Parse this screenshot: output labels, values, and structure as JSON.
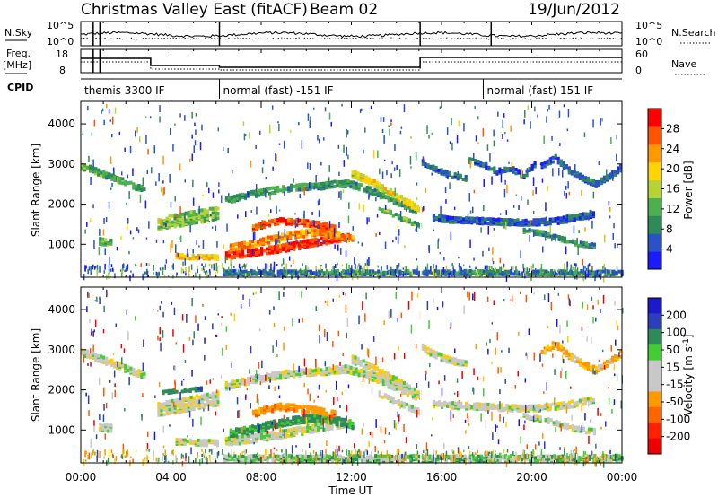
{
  "header": {
    "title": "Christmas Valley East (fitACF)",
    "beam": "Beam 02",
    "date": "19/Jun/2012"
  },
  "strips": {
    "nsky_label": "N.Sky",
    "nsky_tick_top": "10^5",
    "nsky_tick_bottom": "10^0",
    "nsearch_label": "N.Search",
    "nsearch_tick_top": "10^5",
    "nsearch_tick_bottom": "10^0",
    "freq_label": "Freq.",
    "freq_unit": "[MHz]",
    "freq_tick_top": "18",
    "freq_tick_bottom": "8",
    "nave_label": "Nave",
    "nave_tick_top": "60",
    "nave_tick_bottom": "0",
    "cpid_label": "CPID",
    "cpid_segments": [
      {
        "label": "themis 3300 IF",
        "start_h": 0,
        "end_h": 6.15
      },
      {
        "label": "normal (fast) -151 IF",
        "start_h": 6.15,
        "end_h": 17.85
      },
      {
        "label": "normal (fast) 151 IF",
        "start_h": 17.85,
        "end_h": 24
      }
    ]
  },
  "colors": {
    "power": [
      "#1a1aff",
      "#2a52c8",
      "#2e8b57",
      "#4caf50",
      "#b5d334",
      "#ffd400",
      "#ff9900",
      "#ff5500",
      "#ff0000"
    ],
    "velocity": [
      "#1a1acc",
      "#2b3fb8",
      "#2e8b57",
      "#44cc33",
      "#c8c8c8",
      "#c8c8c8",
      "#ff9900",
      "#ff6600",
      "#ff2200",
      "#ee0000"
    ],
    "ground_scatter": "#c8c8c8"
  },
  "chart_data": [
    {
      "type": "heatmap",
      "name": "power",
      "xlabel": "",
      "ylabel": "Slant Range [km]",
      "ylim": [
        180,
        4560
      ],
      "yticks": [
        1000,
        2000,
        3000,
        4000
      ],
      "colorbar_label": "Power [dB]",
      "colorbar_ticks": [
        "4",
        "8",
        "12",
        "16",
        "20",
        "24",
        "28"
      ],
      "colorbar_range": [
        0,
        32
      ],
      "bands": [
        {
          "t": [
            0,
            0.4,
            0.8,
            1.2,
            1.6,
            2.0,
            2.4,
            2.8
          ],
          "r": [
            2930,
            2880,
            2780,
            2700,
            2620,
            2530,
            2430,
            2380
          ],
          "w": 140,
          "v": 11
        },
        {
          "t": [
            3.4,
            3.8,
            4.2,
            4.6,
            5.0,
            5.4,
            5.8,
            6.1
          ],
          "r": [
            1520,
            1560,
            1600,
            1640,
            1690,
            1720,
            1760,
            1800
          ],
          "w": 320,
          "v": 14
        },
        {
          "t": [
            4.2,
            4.7,
            5.2,
            5.7,
            6.1
          ],
          "r": [
            720,
            700,
            690,
            680,
            680
          ],
          "w": 120,
          "v": 20
        },
        {
          "t": [
            0.8,
            1.1,
            1.4
          ],
          "r": [
            1080,
            1060,
            1040
          ],
          "w": 160,
          "v": 12
        },
        {
          "t": [
            6.4,
            7.0,
            7.6,
            8.2,
            8.8,
            9.4,
            10.0,
            10.6,
            11.2,
            11.8
          ],
          "r": [
            720,
            760,
            800,
            850,
            900,
            960,
            1020,
            1080,
            1140,
            1180
          ],
          "w": 180,
          "v": 29
        },
        {
          "t": [
            6.6,
            7.2,
            7.8,
            8.4,
            9.0,
            9.6,
            10.2,
            10.8,
            11.4,
            12.0
          ],
          "r": [
            930,
            980,
            1050,
            1130,
            1200,
            1260,
            1290,
            1280,
            1220,
            1130
          ],
          "w": 170,
          "v": 24
        },
        {
          "t": [
            7.6,
            8.2,
            8.8,
            9.4,
            10.0,
            10.6,
            11.2
          ],
          "r": [
            1400,
            1520,
            1580,
            1560,
            1530,
            1480,
            1400
          ],
          "w": 150,
          "v": 27
        },
        {
          "t": [
            6.4,
            7.0,
            7.6,
            8.2,
            8.8,
            9.4,
            10.0,
            10.6,
            11.2,
            11.8,
            12.4,
            13.0,
            13.6,
            14.2,
            14.8
          ],
          "r": [
            2100,
            2180,
            2260,
            2320,
            2380,
            2420,
            2440,
            2460,
            2500,
            2520,
            2420,
            2300,
            2160,
            2000,
            1860
          ],
          "w": 160,
          "v": 10
        },
        {
          "t": [
            12.0,
            12.6,
            13.2,
            13.8,
            14.4,
            15.0
          ],
          "r": [
            2760,
            2620,
            2450,
            2260,
            2060,
            1880
          ],
          "w": 170,
          "v": 18
        },
        {
          "t": [
            13.2,
            13.8,
            14.4,
            15.0
          ],
          "r": [
            1900,
            1750,
            1600,
            1450
          ],
          "w": 110,
          "v": 12
        },
        {
          "t": [
            15.1,
            15.6,
            16.1,
            16.6,
            17.1
          ],
          "r": [
            3050,
            2900,
            2780,
            2700,
            2640
          ],
          "w": 130,
          "v": 6
        },
        {
          "t": [
            17.2,
            17.8,
            18.4,
            19.0,
            19.6,
            20.2
          ],
          "r": [
            3100,
            3000,
            2820,
            2900,
            2720,
            3050
          ],
          "w": 130,
          "v": 5
        },
        {
          "t": [
            20.4,
            21.0,
            21.6,
            22.2,
            22.8,
            23.4,
            23.9
          ],
          "r": [
            2950,
            3150,
            2850,
            2650,
            2500,
            2700,
            2900
          ],
          "w": 140,
          "v": 7
        },
        {
          "t": [
            15.6,
            16.4,
            17.2,
            18.0,
            18.8,
            19.6,
            20.4,
            21.2,
            22.0,
            22.8
          ],
          "r": [
            1660,
            1620,
            1600,
            1580,
            1560,
            1540,
            1560,
            1600,
            1680,
            1780
          ],
          "w": 150,
          "v": 6
        },
        {
          "t": [
            19.6,
            20.4,
            21.2,
            22.0,
            22.8
          ],
          "r": [
            1350,
            1280,
            1150,
            1020,
            960
          ],
          "w": 110,
          "v": 9
        },
        {
          "t": [
            6.3,
            9.0,
            12.0,
            15.0,
            18.0,
            21.0,
            24.0
          ],
          "r": [
            300,
            300,
            300,
            300,
            300,
            300,
            300
          ],
          "w": 120,
          "v": 8
        }
      ]
    },
    {
      "type": "heatmap",
      "name": "velocity",
      "xlabel": "Time UT",
      "ylabel": "Slant Range [km]",
      "ylim": [
        180,
        4560
      ],
      "yticks": [
        1000,
        2000,
        3000,
        4000
      ],
      "xticks": [
        "00:00",
        "04:00",
        "08:00",
        "12:00",
        "16:00",
        "20:00",
        "00:00"
      ],
      "colorbar_label": "Velocity [m s^-1]",
      "colorbar_ticks": [
        "200",
        "100",
        "50",
        "15",
        "-15",
        "-50",
        "-100",
        "-200"
      ],
      "bands": [
        {
          "t": [
            0,
            0.4,
            0.8,
            1.2,
            1.6,
            2.0,
            2.4,
            2.8
          ],
          "r": [
            2930,
            2880,
            2780,
            2700,
            2620,
            2530,
            2430,
            2380
          ],
          "w": 170,
          "v": 0
        },
        {
          "t": [
            3.4,
            3.8,
            4.2,
            4.6,
            5.0,
            5.4,
            5.8,
            6.1
          ],
          "r": [
            1520,
            1560,
            1600,
            1640,
            1690,
            1720,
            1760,
            1800
          ],
          "w": 340,
          "v": 0
        },
        {
          "t": [
            3.6,
            4.2,
            4.8,
            5.4
          ],
          "r": [
            1950,
            1980,
            2010,
            2040
          ],
          "w": 90,
          "v": 60
        },
        {
          "t": [
            4.2,
            4.7,
            5.2,
            5.7,
            6.1
          ],
          "r": [
            720,
            700,
            690,
            680,
            680
          ],
          "w": 140,
          "v": 0
        },
        {
          "t": [
            0.8,
            1.1,
            1.4
          ],
          "r": [
            1080,
            1060,
            1040
          ],
          "w": 180,
          "v": 0
        },
        {
          "t": [
            6.4,
            7.0,
            7.6,
            8.2,
            8.8,
            9.4,
            10.0,
            10.6,
            11.2,
            11.8
          ],
          "r": [
            720,
            760,
            800,
            850,
            900,
            960,
            1020,
            1080,
            1140,
            1180
          ],
          "w": 200,
          "v": 0
        },
        {
          "t": [
            6.6,
            7.2,
            7.8,
            8.4,
            9.0,
            9.6,
            10.2,
            10.8,
            11.4,
            12.0
          ],
          "r": [
            930,
            980,
            1050,
            1130,
            1200,
            1260,
            1290,
            1280,
            1220,
            1130
          ],
          "w": 190,
          "v": 40
        },
        {
          "t": [
            7.6,
            8.2,
            8.8,
            9.4,
            10.0,
            10.6,
            11.2
          ],
          "r": [
            1400,
            1520,
            1580,
            1560,
            1530,
            1480,
            1400
          ],
          "w": 170,
          "v": -60
        },
        {
          "t": [
            6.4,
            7.0,
            7.6,
            8.2,
            8.8,
            9.4,
            10.0,
            10.6,
            11.2,
            11.8,
            12.4,
            13.0,
            13.6,
            14.2,
            14.8
          ],
          "r": [
            2100,
            2180,
            2260,
            2320,
            2380,
            2420,
            2440,
            2460,
            2500,
            2520,
            2420,
            2300,
            2160,
            2000,
            1860
          ],
          "w": 180,
          "v": 0
        },
        {
          "t": [
            12.0,
            12.6,
            13.2,
            13.8,
            14.4,
            15.0
          ],
          "r": [
            2760,
            2620,
            2450,
            2260,
            2060,
            1880
          ],
          "w": 190,
          "v": 0
        },
        {
          "t": [
            13.2,
            13.8,
            14.4,
            15.0
          ],
          "r": [
            1900,
            1750,
            1600,
            1450
          ],
          "w": 130,
          "v": 0
        },
        {
          "t": [
            15.1,
            15.6,
            16.1,
            16.6,
            17.1
          ],
          "r": [
            3050,
            2900,
            2780,
            2700,
            2640
          ],
          "w": 150,
          "v": 0
        },
        {
          "t": [
            20.4,
            21.0,
            21.6,
            22.2,
            22.8,
            23.4,
            23.9
          ],
          "r": [
            2950,
            3150,
            2850,
            2650,
            2500,
            2700,
            2900
          ],
          "w": 150,
          "v": -30
        },
        {
          "t": [
            15.6,
            16.4,
            17.2,
            18.0,
            18.8,
            19.6,
            20.4,
            21.2,
            22.0,
            22.8
          ],
          "r": [
            1660,
            1620,
            1600,
            1580,
            1560,
            1540,
            1560,
            1600,
            1680,
            1780
          ],
          "w": 160,
          "v": 0
        },
        {
          "t": [
            19.6,
            20.4,
            21.2,
            22.0,
            22.8
          ],
          "r": [
            1350,
            1280,
            1150,
            1020,
            960
          ],
          "w": 120,
          "v": 0
        },
        {
          "t": [
            6.3,
            9.0,
            12.0,
            15.0,
            18.0,
            21.0,
            24.0
          ],
          "r": [
            300,
            300,
            300,
            300,
            300,
            300,
            300
          ],
          "w": 150,
          "v": 20
        }
      ]
    }
  ]
}
